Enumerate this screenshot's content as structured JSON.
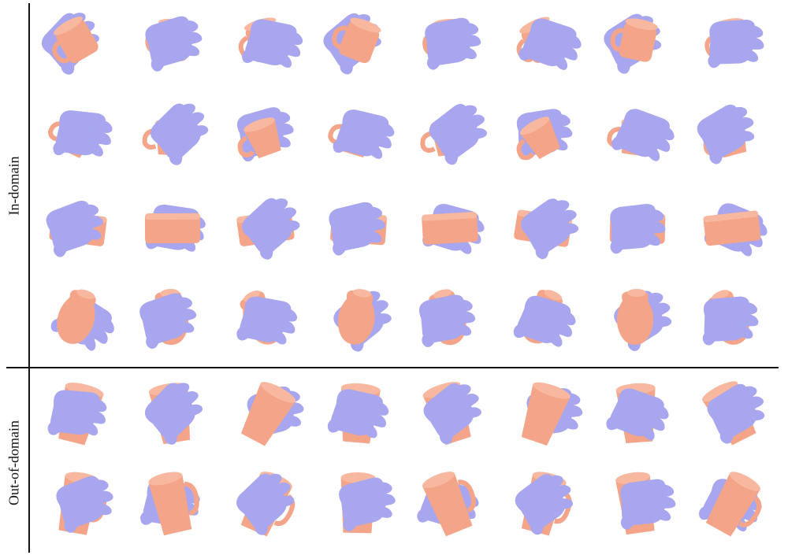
{
  "sections": [
    {
      "label": "In-domain",
      "rows": [
        "mug",
        "cup",
        "box",
        "vase"
      ]
    },
    {
      "label": "Out-of-domain",
      "rows": [
        "glass",
        "pitcher"
      ]
    }
  ],
  "columns": 8,
  "colors": {
    "hand": "#a7a6ee",
    "object": "#f4a589",
    "line": "#111111"
  },
  "grasp_rows": [
    {
      "section": "In-domain",
      "object": "mug"
    },
    {
      "section": "In-domain",
      "object": "cup"
    },
    {
      "section": "In-domain",
      "object": "box"
    },
    {
      "section": "In-domain",
      "object": "vase"
    },
    {
      "section": "Out-of-domain",
      "object": "glass"
    },
    {
      "section": "Out-of-domain",
      "object": "pitcher"
    }
  ]
}
